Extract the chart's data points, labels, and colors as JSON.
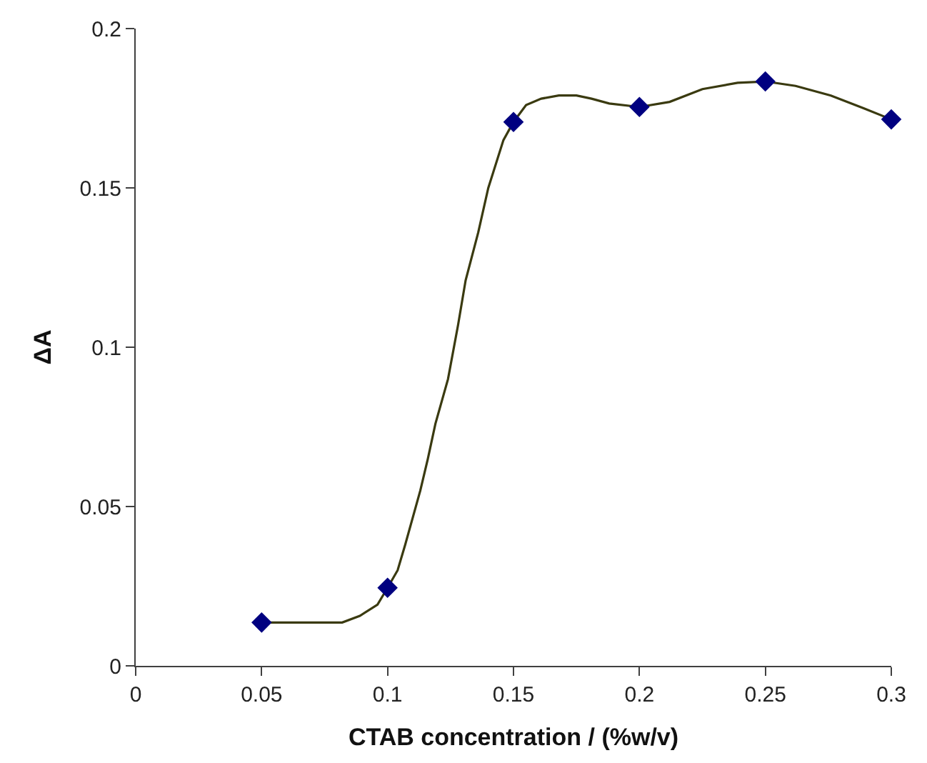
{
  "chart_data": {
    "type": "scatter",
    "xlabel": "CTAB concentration / (%w/v)",
    "ylabel": "ΔA",
    "series": [
      {
        "type": "line",
        "marker": "none",
        "color": "#3a3a10",
        "x": [
          0.05,
          0.082,
          0.089,
          0.096,
          0.1,
          0.104,
          0.107,
          0.113,
          0.116,
          0.119,
          0.124,
          0.128,
          0.131,
          0.136,
          0.14,
          0.146,
          0.15,
          0.155,
          0.161,
          0.168,
          0.175,
          0.181,
          0.188,
          0.2,
          0.212,
          0.225,
          0.239,
          0.25,
          0.262,
          0.276,
          0.289,
          0.3
        ],
        "values": [
          0.0136,
          0.0136,
          0.0157,
          0.0192,
          0.0245,
          0.03,
          0.038,
          0.055,
          0.065,
          0.076,
          0.09,
          0.107,
          0.121,
          0.136,
          0.15,
          0.165,
          0.1707,
          0.176,
          0.178,
          0.179,
          0.179,
          0.178,
          0.1765,
          0.1754,
          0.177,
          0.181,
          0.183,
          0.1834,
          0.182,
          0.179,
          0.175,
          0.1715
        ]
      },
      {
        "marker": "diamond",
        "color": "#000080",
        "x": [
          0.05,
          0.1,
          0.15,
          0.2,
          0.25,
          0.3
        ],
        "values": [
          0.0136,
          0.0245,
          0.1707,
          0.1754,
          0.1834,
          0.1715
        ]
      }
    ],
    "xlim": [
      0,
      0.3
    ],
    "xticks": [
      0,
      0.05,
      0.1,
      0.15,
      0.2,
      0.25,
      0.3
    ],
    "ylim": [
      0,
      0.2
    ],
    "yticks": [
      0,
      0.05,
      0.1,
      0.15,
      0.2
    ]
  }
}
